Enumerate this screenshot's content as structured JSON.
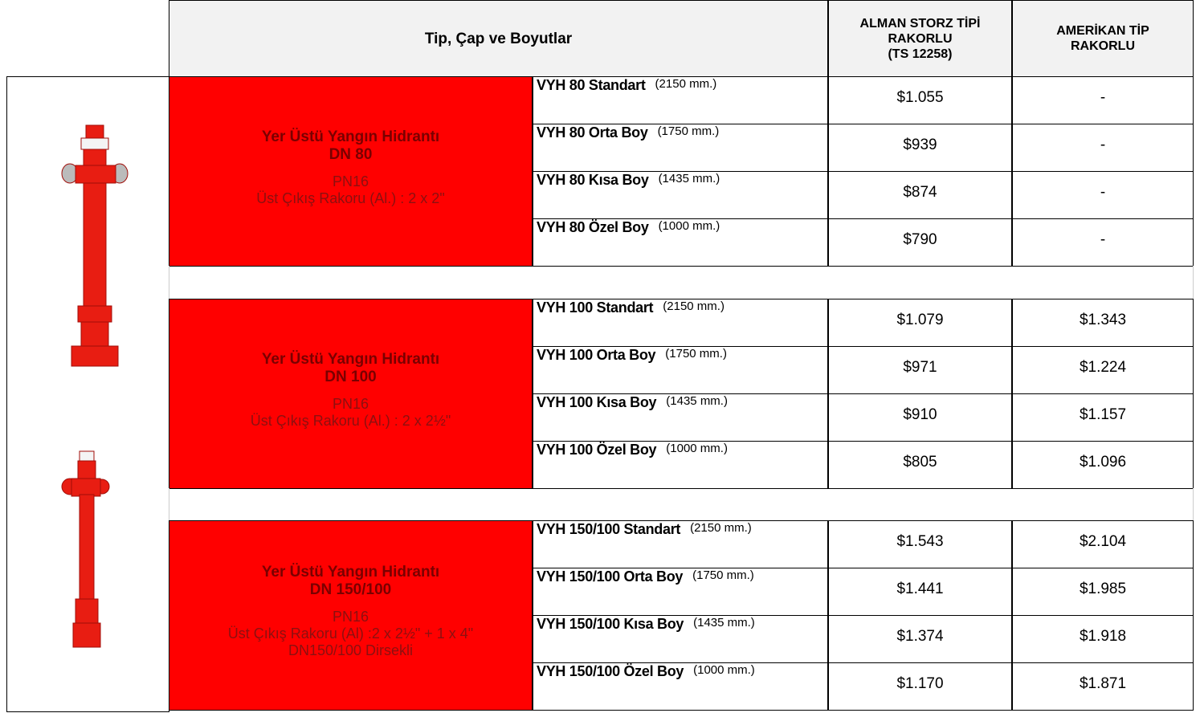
{
  "header": {
    "title": "Tip, Çap ve Boyutlar",
    "alman": [
      "ALMAN STORZ TİPİ",
      "RAKORLU",
      "(TS 12258)"
    ],
    "amerikan": [
      "AMERİKAN TİP",
      "RAKORLU"
    ]
  },
  "groups": [
    {
      "title": "Yer Üstü Yangın Hidrantı",
      "dn": "DN 80",
      "lines": [
        "PN16",
        "Üst Çıkış Rakoru (Al.) : 2 x 2\""
      ],
      "rows": [
        {
          "model": "VYH 80 Standart",
          "length": "(2150 mm.)",
          "alman": "$1.055",
          "amerikan": "-"
        },
        {
          "model": "VYH 80 Orta Boy",
          "length": "(1750 mm.)",
          "alman": "$939",
          "amerikan": "-"
        },
        {
          "model": "VYH 80 Kısa Boy",
          "length": "(1435 mm.)",
          "alman": "$874",
          "amerikan": "-"
        },
        {
          "model": "VYH 80 Özel Boy",
          "length": "(1000 mm.)",
          "alman": "$790",
          "amerikan": "-"
        }
      ]
    },
    {
      "title": "Yer Üstü Yangın Hidrantı",
      "dn": "DN 100",
      "lines": [
        "PN16",
        "Üst Çıkış Rakoru (Al.) : 2 x 2½\""
      ],
      "rows": [
        {
          "model": "VYH 100 Standart",
          "length": "(2150 mm.)",
          "alman": "$1.079",
          "amerikan": "$1.343"
        },
        {
          "model": "VYH 100 Orta Boy",
          "length": "(1750 mm.)",
          "alman": "$971",
          "amerikan": "$1.224"
        },
        {
          "model": "VYH 100 Kısa Boy",
          "length": "(1435 mm.)",
          "alman": "$910",
          "amerikan": "$1.157"
        },
        {
          "model": "VYH 100 Özel Boy",
          "length": "(1000 mm.)",
          "alman": "$805",
          "amerikan": "$1.096"
        }
      ]
    },
    {
      "title": "Yer Üstü Yangın Hidrantı",
      "dn": "DN 150/100",
      "lines": [
        "PN16",
        "Üst Çıkış Rakoru (Al) :2 x 2½\" + 1 x 4\"",
        "DN150/100 Dirsekli"
      ],
      "rows": [
        {
          "model": "VYH 150/100 Standart",
          "length": "(2150 mm.)",
          "alman": "$1.543",
          "amerikan": "$2.104"
        },
        {
          "model": "VYH 150/100 Orta Boy",
          "length": "(1750 mm.)",
          "alman": "$1.441",
          "amerikan": "$1.985"
        },
        {
          "model": "VYH 150/100 Kısa Boy",
          "length": "(1435 mm.)",
          "alman": "$1.374",
          "amerikan": "$1.918"
        },
        {
          "model": "VYH 150/100 Özel Boy",
          "length": "(1000 mm.)",
          "alman": "$1.170",
          "amerikan": "$1.871"
        }
      ]
    }
  ]
}
